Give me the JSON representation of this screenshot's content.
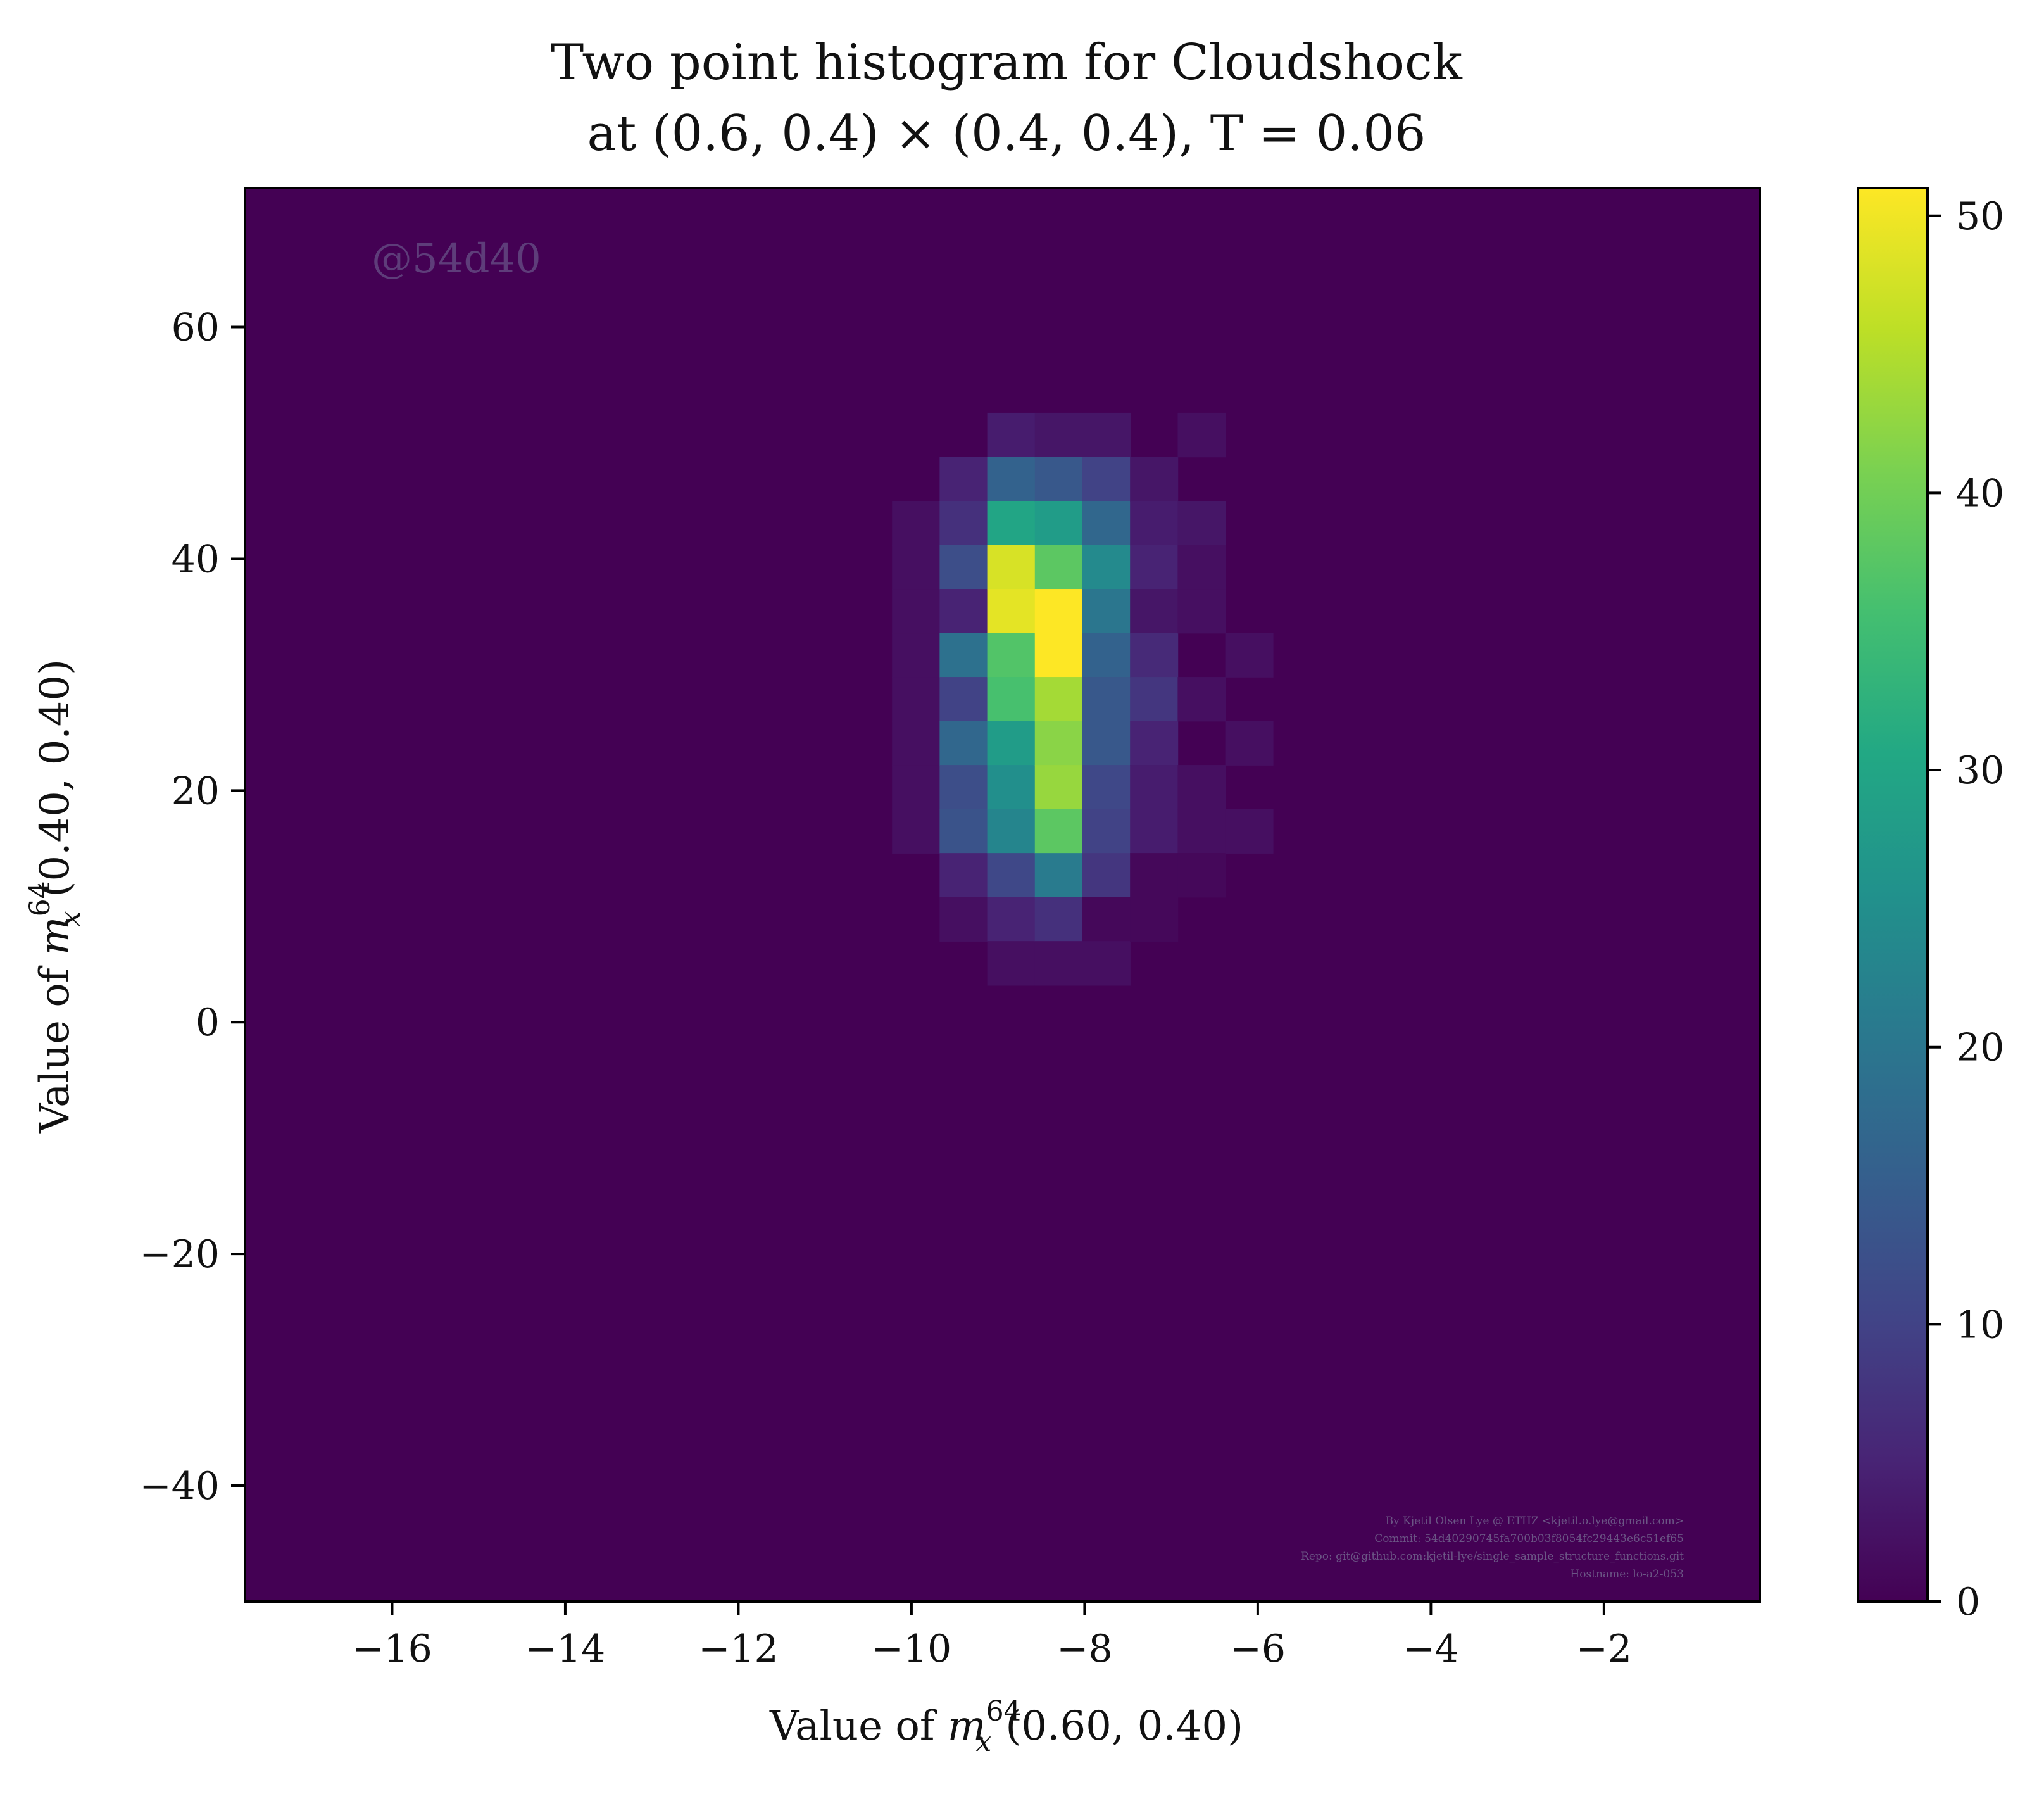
{
  "chart_data": {
    "type": "heatmap",
    "title_line1": "Two point histogram for Cloudshock",
    "title_line2": "at (0.6, 0.4) × (0.4, 0.4), T = 0.06",
    "xlabel_prefix": "Value of ",
    "xlabel_var": "m",
    "xlabel_sup": "64",
    "xlabel_sub": "x",
    "xlabel_args": "(0.60, 0.40)",
    "ylabel_prefix": "Value of ",
    "ylabel_var": "m",
    "ylabel_sup": "64",
    "ylabel_sub": "x",
    "ylabel_args": "(0.40, 0.40)",
    "xlim": [
      -17.7,
      -0.2
    ],
    "ylim": [
      -50,
      72
    ],
    "xticks": [
      -16,
      -14,
      -12,
      -10,
      -8,
      -6,
      -4,
      -2
    ],
    "yticks": [
      -40,
      -20,
      0,
      20,
      40,
      60
    ],
    "colorbar": {
      "min": 0,
      "max": 51,
      "ticks": [
        0,
        10,
        20,
        30,
        40,
        50
      ],
      "colormap": "viridis"
    },
    "bin_width_x": 0.55,
    "bin_height_y": 3.8,
    "bins": [
      {
        "x": -9.95,
        "y": 43.1,
        "v": 2
      },
      {
        "x": -9.95,
        "y": 39.3,
        "v": 2
      },
      {
        "x": -9.95,
        "y": 31.7,
        "v": 2
      },
      {
        "x": -9.95,
        "y": 27.9,
        "v": 2
      },
      {
        "x": -9.95,
        "y": 24.1,
        "v": 2
      },
      {
        "x": -9.95,
        "y": 20.3,
        "v": 2
      },
      {
        "x": -9.95,
        "y": 35.5,
        "v": 2
      },
      {
        "x": -9.95,
        "y": 16.5,
        "v": 2
      },
      {
        "x": -9.4,
        "y": 46.9,
        "v": 5
      },
      {
        "x": -9.4,
        "y": 43.1,
        "v": 7
      },
      {
        "x": -9.4,
        "y": 39.3,
        "v": 12
      },
      {
        "x": -9.4,
        "y": 35.5,
        "v": 5
      },
      {
        "x": -9.4,
        "y": 31.7,
        "v": 19
      },
      {
        "x": -9.4,
        "y": 27.9,
        "v": 10
      },
      {
        "x": -9.4,
        "y": 24.1,
        "v": 17
      },
      {
        "x": -9.4,
        "y": 20.3,
        "v": 12
      },
      {
        "x": -9.4,
        "y": 16.5,
        "v": 13
      },
      {
        "x": -9.4,
        "y": 12.7,
        "v": 5
      },
      {
        "x": -9.4,
        "y": 8.9,
        "v": 2
      },
      {
        "x": -8.85,
        "y": 50.7,
        "v": 4
      },
      {
        "x": -8.85,
        "y": 46.9,
        "v": 16
      },
      {
        "x": -8.85,
        "y": 43.1,
        "v": 30
      },
      {
        "x": -8.85,
        "y": 39.3,
        "v": 48
      },
      {
        "x": -8.85,
        "y": 35.5,
        "v": 49
      },
      {
        "x": -8.85,
        "y": 31.7,
        "v": 37
      },
      {
        "x": -8.85,
        "y": 27.9,
        "v": 36
      },
      {
        "x": -8.85,
        "y": 24.1,
        "v": 28
      },
      {
        "x": -8.85,
        "y": 20.3,
        "v": 25
      },
      {
        "x": -8.85,
        "y": 16.5,
        "v": 23
      },
      {
        "x": -8.85,
        "y": 12.7,
        "v": 11
      },
      {
        "x": -8.85,
        "y": 8.9,
        "v": 5
      },
      {
        "x": -8.85,
        "y": 5.1,
        "v": 2
      },
      {
        "x": -8.3,
        "y": 50.7,
        "v": 3
      },
      {
        "x": -8.3,
        "y": 46.9,
        "v": 14
      },
      {
        "x": -8.3,
        "y": 43.1,
        "v": 28
      },
      {
        "x": -8.3,
        "y": 39.3,
        "v": 38
      },
      {
        "x": -8.3,
        "y": 35.5,
        "v": 51
      },
      {
        "x": -8.3,
        "y": 31.7,
        "v": 51
      },
      {
        "x": -8.3,
        "y": 27.9,
        "v": 44
      },
      {
        "x": -8.3,
        "y": 24.1,
        "v": 42
      },
      {
        "x": -8.3,
        "y": 20.3,
        "v": 43
      },
      {
        "x": -8.3,
        "y": 16.5,
        "v": 38
      },
      {
        "x": -8.3,
        "y": 12.7,
        "v": 21
      },
      {
        "x": -8.3,
        "y": 8.9,
        "v": 7
      },
      {
        "x": -8.3,
        "y": 5.1,
        "v": 2
      },
      {
        "x": -7.75,
        "y": 50.7,
        "v": 3
      },
      {
        "x": -7.75,
        "y": 46.9,
        "v": 10
      },
      {
        "x": -7.75,
        "y": 43.1,
        "v": 17
      },
      {
        "x": -7.75,
        "y": 39.3,
        "v": 24
      },
      {
        "x": -7.75,
        "y": 35.5,
        "v": 20
      },
      {
        "x": -7.75,
        "y": 31.7,
        "v": 16
      },
      {
        "x": -7.75,
        "y": 27.9,
        "v": 14
      },
      {
        "x": -7.75,
        "y": 24.1,
        "v": 14
      },
      {
        "x": -7.75,
        "y": 20.3,
        "v": 11
      },
      {
        "x": -7.75,
        "y": 16.5,
        "v": 10
      },
      {
        "x": -7.75,
        "y": 12.7,
        "v": 8
      },
      {
        "x": -7.75,
        "y": 8.9,
        "v": 1
      },
      {
        "x": -7.75,
        "y": 5.1,
        "v": 2
      },
      {
        "x": -7.2,
        "y": 46.9,
        "v": 3
      },
      {
        "x": -7.2,
        "y": 43.1,
        "v": 4
      },
      {
        "x": -7.2,
        "y": 39.3,
        "v": 5
      },
      {
        "x": -7.2,
        "y": 35.5,
        "v": 3
      },
      {
        "x": -7.2,
        "y": 31.7,
        "v": 6
      },
      {
        "x": -7.2,
        "y": 27.9,
        "v": 8
      },
      {
        "x": -7.2,
        "y": 24.1,
        "v": 5
      },
      {
        "x": -7.2,
        "y": 20.3,
        "v": 4
      },
      {
        "x": -7.2,
        "y": 16.5,
        "v": 4
      },
      {
        "x": -7.2,
        "y": 12.7,
        "v": 1
      },
      {
        "x": -7.2,
        "y": 8.9,
        "v": 1
      },
      {
        "x": -6.65,
        "y": 50.7,
        "v": 2
      },
      {
        "x": -6.65,
        "y": 43.1,
        "v": 3
      },
      {
        "x": -6.65,
        "y": 39.3,
        "v": 2
      },
      {
        "x": -6.65,
        "y": 35.5,
        "v": 2
      },
      {
        "x": -6.65,
        "y": 27.9,
        "v": 2
      },
      {
        "x": -6.65,
        "y": 20.3,
        "v": 2
      },
      {
        "x": -6.65,
        "y": 16.5,
        "v": 2
      },
      {
        "x": -6.65,
        "y": 12.7,
        "v": 1
      },
      {
        "x": -6.1,
        "y": 31.7,
        "v": 2
      },
      {
        "x": -6.1,
        "y": 24.1,
        "v": 2
      },
      {
        "x": -6.1,
        "y": 16.5,
        "v": 2
      }
    ]
  },
  "watermark": "@54d40",
  "credits": [
    "By Kjetil Olsen Lye @ ETHZ <kjetil.o.lye@gmail.com>",
    "Commit: 54d40290745fa700b03f8054fc29443e6c51ef65",
    "Repo: git@github.com:kjetil-lye/single_sample_structure_functions.git",
    "Hostname: lo-a2-053"
  ]
}
